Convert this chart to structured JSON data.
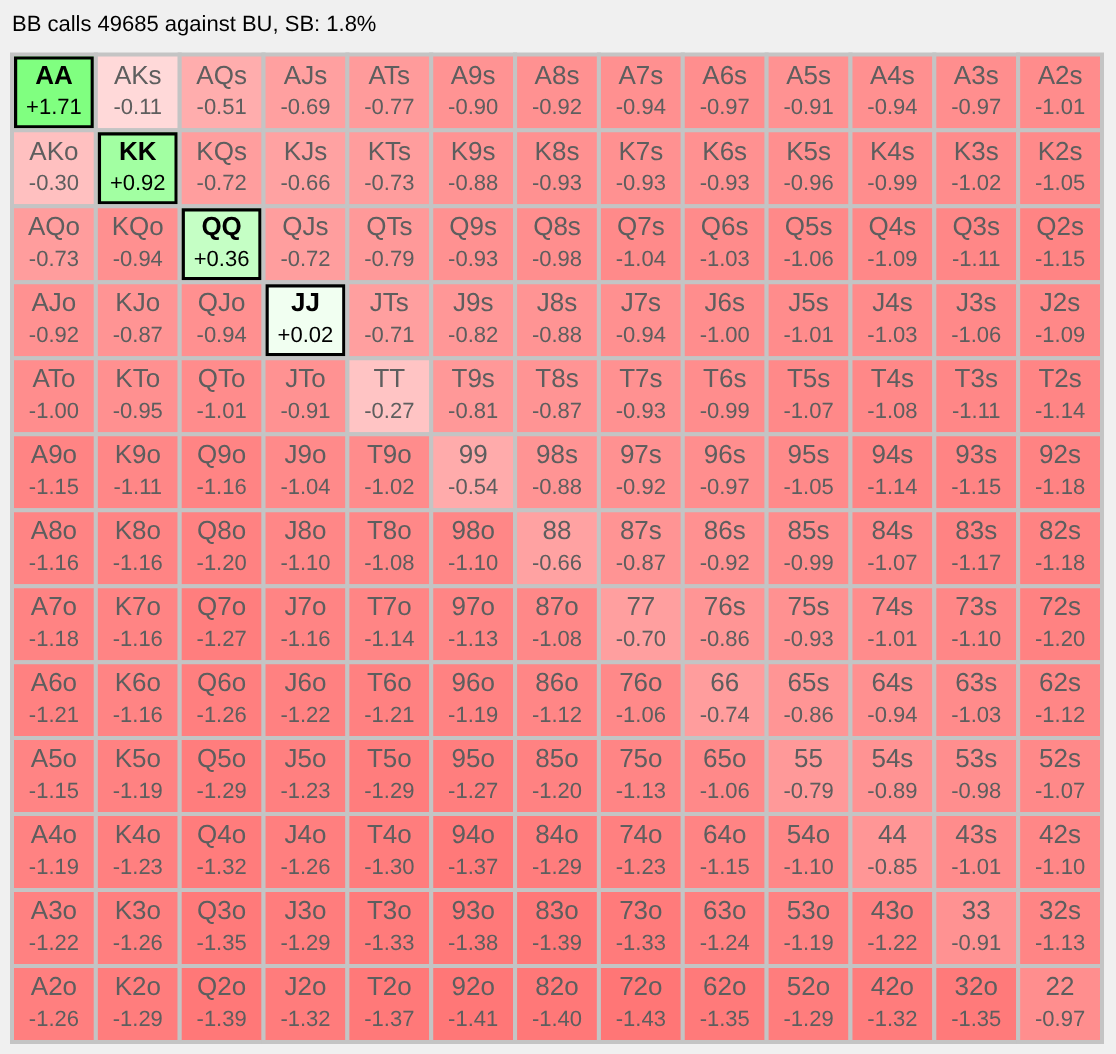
{
  "chart_data": {
    "type": "heatmap",
    "title": "BB calls 49685 against BU, SB: 1.8%",
    "categories": [
      null,
      null,
      null,
      null,
      null,
      null,
      null,
      null,
      null,
      null,
      null,
      null,
      null
    ],
    "y_categories": [
      null,
      null,
      null,
      null,
      null,
      null,
      null,
      null,
      null,
      null,
      null,
      null,
      null
    ],
    "cells": [
      [
        1.71,
        -0.11,
        -0.51,
        -0.69,
        -0.77,
        -0.9,
        -0.92,
        -0.94,
        -0.97,
        -0.91,
        -0.94,
        -0.97,
        -1.01
      ],
      [
        -0.3,
        0.92,
        -0.72,
        -0.66,
        -0.73,
        -0.88,
        -0.93,
        -0.93,
        -0.93,
        -0.96,
        -0.99,
        -1.02,
        -1.05
      ],
      [
        -0.73,
        -0.94,
        0.36,
        -0.72,
        -0.79,
        -0.93,
        -0.98,
        -1.04,
        -1.03,
        -1.06,
        -1.09,
        -1.11,
        -1.15
      ],
      [
        -0.92,
        -0.87,
        -0.94,
        0.02,
        -0.71,
        -0.82,
        -0.88,
        -0.94,
        -1.0,
        -1.01,
        -1.03,
        -1.06,
        -1.09
      ],
      [
        -1.0,
        -0.95,
        -1.01,
        -0.91,
        -0.27,
        -0.81,
        -0.87,
        -0.93,
        -0.99,
        -1.07,
        -1.08,
        -1.11,
        -1.14
      ],
      [
        -1.15,
        -1.11,
        -1.16,
        -1.04,
        -1.02,
        -0.54,
        -0.88,
        -0.92,
        -0.97,
        -1.05,
        -1.14,
        -1.15,
        -1.18
      ],
      [
        -1.16,
        -1.16,
        -1.2,
        -1.1,
        -1.08,
        -1.1,
        -0.66,
        -0.87,
        -0.92,
        -0.99,
        -1.07,
        -1.17,
        -1.18
      ],
      [
        -1.18,
        -1.16,
        -1.27,
        -1.16,
        -1.14,
        -1.13,
        -1.08,
        -0.7,
        -0.86,
        -0.93,
        -1.01,
        -1.1,
        -1.2
      ],
      [
        -1.21,
        -1.16,
        -1.26,
        -1.22,
        -1.21,
        -1.19,
        -1.12,
        -1.06,
        -0.74,
        -0.86,
        -0.94,
        -1.03,
        -1.12
      ],
      [
        -1.15,
        -1.19,
        -1.29,
        -1.23,
        -1.29,
        -1.27,
        -1.2,
        -1.13,
        -1.06,
        -0.79,
        -0.89,
        -0.98,
        -1.07
      ],
      [
        -1.19,
        -1.23,
        -1.32,
        -1.26,
        -1.3,
        -1.37,
        -1.29,
        -1.23,
        -1.15,
        -1.1,
        -0.85,
        -1.01,
        -1.1
      ],
      [
        -1.22,
        -1.26,
        -1.35,
        -1.29,
        -1.33,
        -1.38,
        -1.39,
        -1.33,
        -1.24,
        -1.19,
        -1.22,
        -0.91,
        -1.13
      ],
      [
        -1.26,
        -1.29,
        -1.39,
        -1.32,
        -1.37,
        -1.41,
        -1.4,
        -1.43,
        -1.35,
        -1.29,
        -1.32,
        -1.35,
        -0.97
      ]
    ],
    "cell_labels": [
      [
        "+1.71",
        "-0.11",
        "-0.51",
        "-0.69",
        "-0.77",
        "-0.90",
        "-0.92",
        "-0.94",
        "-0.97",
        "-0.91",
        "-0.94",
        "-0.97",
        "-1.01"
      ],
      [
        "-0.30",
        "+0.92",
        "-0.72",
        "-0.66",
        "-0.73",
        "-0.88",
        "-0.93",
        "-0.93",
        "-0.93",
        "-0.96",
        "-0.99",
        "-1.02",
        "-1.05"
      ],
      [
        "-0.73",
        "-0.94",
        "+0.36",
        "-0.72",
        "-0.79",
        "-0.93",
        "-0.98",
        "-1.04",
        "-1.03",
        "-1.06",
        "-1.09",
        "-1.11",
        "-1.15"
      ],
      [
        "-0.92",
        "-0.87",
        "-0.94",
        "+0.02",
        "-0.71",
        "-0.82",
        "-0.88",
        "-0.94",
        "-1.00",
        "-1.01",
        "-1.03",
        "-1.06",
        "-1.09"
      ],
      [
        "-1.00",
        "-0.95",
        "-1.01",
        "-0.91",
        "-0.27",
        "-0.81",
        "-0.87",
        "-0.93",
        "-0.99",
        "-1.07",
        "-1.08",
        "-1.11",
        "-1.14"
      ],
      [
        "-1.15",
        "-1.11",
        "-1.16",
        "-1.04",
        "-1.02",
        "-0.54",
        "-0.88",
        "-0.92",
        "-0.97",
        "-1.05",
        "-1.14",
        "-1.15",
        "-1.18"
      ],
      [
        "-1.16",
        "-1.16",
        "-1.20",
        "-1.10",
        "-1.08",
        "-1.10",
        "-0.66",
        "-0.87",
        "-0.92",
        "-0.99",
        "-1.07",
        "-1.17",
        "-1.18"
      ],
      [
        "-1.18",
        "-1.16",
        "-1.27",
        "-1.16",
        "-1.14",
        "-1.13",
        "-1.08",
        "-0.70",
        "-0.86",
        "-0.93",
        "-1.01",
        "-1.10",
        "-1.20"
      ],
      [
        "-1.21",
        "-1.16",
        "-1.26",
        "-1.22",
        "-1.21",
        "-1.19",
        "-1.12",
        "-1.06",
        "-0.74",
        "-0.86",
        "-0.94",
        "-1.03",
        "-1.12"
      ],
      [
        "-1.15",
        "-1.19",
        "-1.29",
        "-1.23",
        "-1.29",
        "-1.27",
        "-1.20",
        "-1.13",
        "-1.06",
        "-0.79",
        "-0.89",
        "-0.98",
        "-1.07"
      ],
      [
        "-1.19",
        "-1.23",
        "-1.32",
        "-1.26",
        "-1.30",
        "-1.37",
        "-1.29",
        "-1.23",
        "-1.15",
        "-1.10",
        "-0.85",
        "-1.01",
        "-1.10"
      ],
      [
        "-1.22",
        "-1.26",
        "-1.35",
        "-1.29",
        "-1.33",
        "-1.38",
        "-1.39",
        "-1.33",
        "-1.24",
        "-1.19",
        "-1.22",
        "-0.91",
        "-1.13"
      ],
      [
        "-1.26",
        "-1.29",
        "-1.39",
        "-1.32",
        "-1.37",
        "-1.41",
        "-1.40",
        "-1.43",
        "-1.35",
        "-1.29",
        "-1.32",
        "-1.35",
        "-0.97"
      ]
    ],
    "annotations": [
      "AA",
      "AKs",
      "AQs",
      "AJs",
      "ATs",
      "A9s",
      "A8s",
      "A7s",
      "A6s",
      "A5s",
      "A4s",
      "A3s",
      "A2s",
      "AKo",
      "KK",
      "KQs",
      "KJs",
      "KTs",
      "K9s",
      "K8s",
      "K7s",
      "K6s",
      "K5s",
      "K4s",
      "K3s",
      "K2s",
      "AQo",
      "KQo",
      "QQ",
      "QJs",
      "QTs",
      "Q9s",
      "Q8s",
      "Q7s",
      "Q6s",
      "Q5s",
      "Q4s",
      "Q3s",
      "Q2s",
      "AJo",
      "KJo",
      "QJo",
      "JJ",
      "JTs",
      "J9s",
      "J8s",
      "J7s",
      "J6s",
      "J5s",
      "J4s",
      "J3s",
      "J2s",
      "ATo",
      "KTo",
      "QTo",
      "JTo",
      "TT",
      "T9s",
      "T8s",
      "T7s",
      "T6s",
      "T5s",
      "T4s",
      "T3s",
      "T2s",
      "A9o",
      "K9o",
      "Q9o",
      "J9o",
      "T9o",
      "99",
      "98s",
      "97s",
      "96s",
      "95s",
      "94s",
      "93s",
      "92s",
      "A8o",
      "K8o",
      "Q8o",
      "J8o",
      "T8o",
      "98o",
      "88",
      "87s",
      "86s",
      "85s",
      "84s",
      "83s",
      "82s",
      "A7o",
      "K7o",
      "Q7o",
      "J7o",
      "T7o",
      "97o",
      "87o",
      "77",
      "76s",
      "75s",
      "74s",
      "73s",
      "72s",
      "A6o",
      "K6o",
      "Q6o",
      "J6o",
      "T6o",
      "96o",
      "86o",
      "76o",
      "66",
      "65s",
      "64s",
      "63s",
      "62s",
      "A5o",
      "K5o",
      "Q5o",
      "J5o",
      "T5o",
      "95o",
      "85o",
      "75o",
      "65o",
      "55",
      "54s",
      "53s",
      "52s",
      "A4o",
      "K4o",
      "Q4o",
      "J4o",
      "T4o",
      "94o",
      "84o",
      "74o",
      "64o",
      "54o",
      "44",
      "43s",
      "42s",
      "A3o",
      "K3o",
      "Q3o",
      "J3o",
      "T3o",
      "93o",
      "83o",
      "73o",
      "63o",
      "53o",
      "43o",
      "33",
      "32s",
      "A2o",
      "K2o",
      "Q2o",
      "J2o",
      "T2o",
      "92o",
      "82o",
      "72o",
      "62o",
      "52o",
      "42o",
      "32o",
      "22"
    ]
  }
}
